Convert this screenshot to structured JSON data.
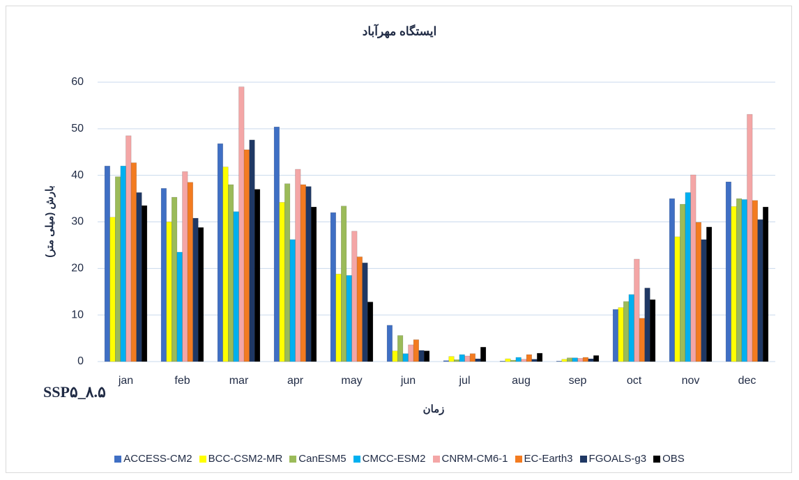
{
  "chart_data": {
    "type": "bar",
    "title": "ایستگاه مهرآباد",
    "y_label": "بارش (میلی متر)",
    "x_label": "زمان",
    "annotation": "SSP۵_۸.۵",
    "categories": [
      "jan",
      "feb",
      "mar",
      "apr",
      "may",
      "jun",
      "jul",
      "aug",
      "sep",
      "oct",
      "nov",
      "dec"
    ],
    "series": [
      {
        "name": "ACCESS-CM2",
        "color": "#3f6fc4",
        "values": [
          42,
          37.2,
          46.8,
          50.4,
          32,
          7.8,
          0.2,
          0.1,
          0.1,
          11.2,
          35,
          38.6
        ]
      },
      {
        "name": "BCC-CSM2-MR",
        "color": "#ffff00",
        "values": [
          31,
          30,
          41.8,
          34.2,
          18.8,
          2.3,
          1.1,
          0.6,
          0.5,
          11.6,
          26.8,
          33.3
        ]
      },
      {
        "name": "CanESM5",
        "color": "#9bbb59",
        "values": [
          39.7,
          35.3,
          38,
          38.2,
          33.4,
          5.6,
          0.4,
          0.3,
          0.8,
          12.9,
          33.8,
          35
        ]
      },
      {
        "name": "CMCC-ESM2",
        "color": "#00b0f0",
        "values": [
          42,
          23.5,
          32.2,
          26.2,
          18.5,
          1.7,
          1.5,
          0.9,
          0.8,
          14.4,
          36.3,
          34.8
        ]
      },
      {
        "name": "CNRM-CM6-1",
        "color": "#f4a6a6",
        "values": [
          48.5,
          40.8,
          59,
          41.3,
          28,
          3.6,
          1.2,
          0.5,
          0.7,
          22,
          40.1,
          53.1
        ]
      },
      {
        "name": "EC-Earth3",
        "color": "#f37b20",
        "values": [
          42.7,
          38.5,
          45.5,
          38,
          22.5,
          4.7,
          1.7,
          1.5,
          0.9,
          9.3,
          29.9,
          34.6
        ]
      },
      {
        "name": "FGOALS-g3",
        "color": "#1f3864",
        "values": [
          36.3,
          30.8,
          47.6,
          37.6,
          21.2,
          2.4,
          0.6,
          0.5,
          0.6,
          15.8,
          26.2,
          30.5
        ]
      },
      {
        "name": "OBS",
        "color": "#000000",
        "values": [
          33.5,
          28.8,
          37,
          33.2,
          12.8,
          2.3,
          3.1,
          1.8,
          1.3,
          13.3,
          28.9,
          33.2
        ]
      }
    ],
    "ylim": [
      0,
      60
    ],
    "yticks": [
      0,
      10,
      20,
      30,
      40,
      50,
      60
    ],
    "grid": true
  }
}
